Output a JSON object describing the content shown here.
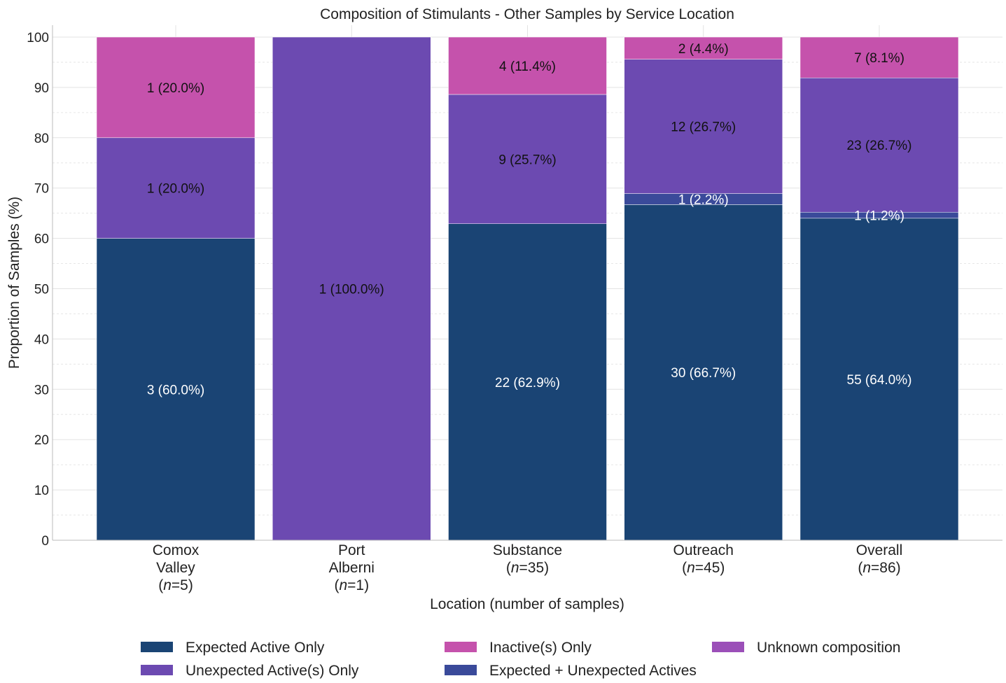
{
  "chart_data": {
    "type": "bar",
    "stacked": true,
    "title": "Composition of Stimulants - Other Samples by Service Location",
    "xlabel": "Location (number of samples)",
    "ylabel": "Proportion of Samples (%)",
    "ylim": [
      0,
      100
    ],
    "yticks": [
      0,
      10,
      20,
      30,
      40,
      50,
      60,
      70,
      80,
      90,
      100
    ],
    "grid": true,
    "legend_position": "bottom",
    "categories": [
      {
        "lines": [
          "Comox",
          "Valley"
        ],
        "n": "5"
      },
      {
        "lines": [
          "Port",
          "Alberni"
        ],
        "n": "1"
      },
      {
        "lines": [
          "Substance"
        ],
        "n": "35"
      },
      {
        "lines": [
          "Outreach"
        ],
        "n": "45"
      },
      {
        "lines": [
          "Overall"
        ],
        "n": "86"
      }
    ],
    "series": [
      {
        "name": "Expected Active Only",
        "color": "#1a4474",
        "label_color": "#ffffff",
        "values": [
          60.0,
          0,
          62.9,
          66.7,
          64.0
        ],
        "labels": [
          "3 (60.0%)",
          "",
          "22 (62.9%)",
          "30 (66.7%)",
          "55 (64.0%)"
        ]
      },
      {
        "name": "Expected + Unexpected Actives",
        "color": "#3a4a9a",
        "label_color": "#ffffff",
        "values": [
          0,
          0,
          0,
          2.2,
          1.2
        ],
        "labels": [
          "",
          "",
          "",
          "1 (2.2%)",
          "1 (1.2%)"
        ]
      },
      {
        "name": "Unexpected Active(s) Only",
        "color": "#6c4ab1",
        "label_color": "#111111",
        "values": [
          20.0,
          100.0,
          25.7,
          26.7,
          26.7
        ],
        "labels": [
          "1 (20.0%)",
          "1 (100.0%)",
          "9 (25.7%)",
          "12 (26.7%)",
          "23 (26.7%)"
        ]
      },
      {
        "name": "Unknown composition",
        "color": "#9b4fb8",
        "label_color": "#111111",
        "values": [
          0,
          0,
          0,
          0,
          0
        ],
        "labels": [
          "",
          "",
          "",
          "",
          ""
        ]
      },
      {
        "name": "Inactive(s) Only",
        "color": "#c552ac",
        "label_color": "#111111",
        "values": [
          20.0,
          0,
          11.4,
          4.4,
          8.1
        ],
        "labels": [
          "1 (20.0%)",
          "",
          "4 (11.4%)",
          "2 (4.4%)",
          "7 (8.1%)"
        ]
      }
    ],
    "legend_order": [
      0,
      2,
      4,
      1,
      3
    ]
  }
}
